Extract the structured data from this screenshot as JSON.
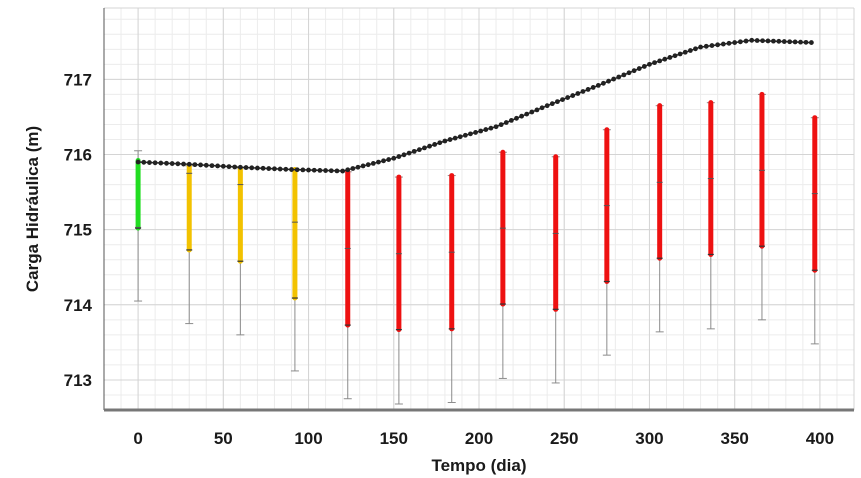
{
  "chart_data": {
    "type": "line",
    "title": "",
    "xlabel": "Tempo (dia)",
    "ylabel": "Carga Hidráulica (m)",
    "xlim": [
      -20,
      420
    ],
    "ylim": [
      712.6,
      717.95
    ],
    "x_ticks": [
      0,
      50,
      100,
      150,
      200,
      250,
      300,
      350,
      400
    ],
    "y_ticks": [
      713,
      714,
      715,
      716,
      717
    ],
    "grid": true,
    "legend": "none",
    "series": [
      {
        "style": "line-with-markers",
        "color": "#222222",
        "x": [
          0,
          30,
          60,
          90,
          120,
          150,
          180,
          210,
          240,
          270,
          300,
          330,
          360,
          395
        ],
        "y": [
          715.9,
          715.87,
          715.83,
          715.8,
          715.78,
          715.95,
          716.18,
          716.37,
          716.65,
          716.92,
          717.2,
          717.43,
          717.52,
          717.49
        ]
      }
    ],
    "ranges": {
      "colors": {
        "green": "#22dd22",
        "yellow": "#f2c200",
        "red": "#ee1111",
        "whisker": "#8c8c8c"
      },
      "items": [
        {
          "x": 0,
          "color": "green",
          "whisker_low": 714.05,
          "whisker_high": 716.05,
          "bar_low": 715.02,
          "bar_high": 715.92,
          "mid": 715.03
        },
        {
          "x": 30,
          "color": "yellow",
          "whisker_low": 713.75,
          "whisker_high": 715.85,
          "bar_low": 714.73,
          "bar_high": 715.85,
          "mid": 715.75
        },
        {
          "x": 60,
          "color": "yellow",
          "whisker_low": 713.6,
          "whisker_high": 715.82,
          "bar_low": 714.58,
          "bar_high": 715.82,
          "mid": 715.6
        },
        {
          "x": 92,
          "color": "yellow",
          "whisker_low": 713.12,
          "whisker_high": 715.8,
          "bar_low": 714.09,
          "bar_high": 715.8,
          "mid": 715.1
        },
        {
          "x": 123,
          "color": "red",
          "whisker_low": 712.75,
          "whisker_high": 715.77,
          "bar_low": 713.73,
          "bar_high": 715.77,
          "mid": 714.75
        },
        {
          "x": 153,
          "color": "red",
          "whisker_low": 712.68,
          "whisker_high": 715.7,
          "bar_low": 713.67,
          "bar_high": 715.7,
          "mid": 714.68
        },
        {
          "x": 184,
          "color": "red",
          "whisker_low": 712.7,
          "whisker_high": 715.72,
          "bar_low": 713.68,
          "bar_high": 715.72,
          "mid": 714.7
        },
        {
          "x": 214,
          "color": "red",
          "whisker_low": 713.02,
          "whisker_high": 716.03,
          "bar_low": 714.01,
          "bar_high": 716.03,
          "mid": 715.02
        },
        {
          "x": 245,
          "color": "red",
          "whisker_low": 712.96,
          "whisker_high": 715.97,
          "bar_low": 713.94,
          "bar_high": 715.97,
          "mid": 714.95
        },
        {
          "x": 275,
          "color": "red",
          "whisker_low": 713.33,
          "whisker_high": 716.33,
          "bar_low": 714.31,
          "bar_high": 716.33,
          "mid": 715.32
        },
        {
          "x": 306,
          "color": "red",
          "whisker_low": 713.64,
          "whisker_high": 716.65,
          "bar_low": 714.62,
          "bar_high": 716.65,
          "mid": 715.63
        },
        {
          "x": 336,
          "color": "red",
          "whisker_low": 713.68,
          "whisker_high": 716.69,
          "bar_low": 714.67,
          "bar_high": 716.69,
          "mid": 715.68
        },
        {
          "x": 366,
          "color": "red",
          "whisker_low": 713.8,
          "whisker_high": 716.8,
          "bar_low": 714.78,
          "bar_high": 716.8,
          "mid": 715.79
        },
        {
          "x": 397,
          "color": "red",
          "whisker_low": 713.48,
          "whisker_high": 716.49,
          "bar_low": 714.46,
          "bar_high": 716.49,
          "mid": 715.48
        }
      ]
    }
  }
}
